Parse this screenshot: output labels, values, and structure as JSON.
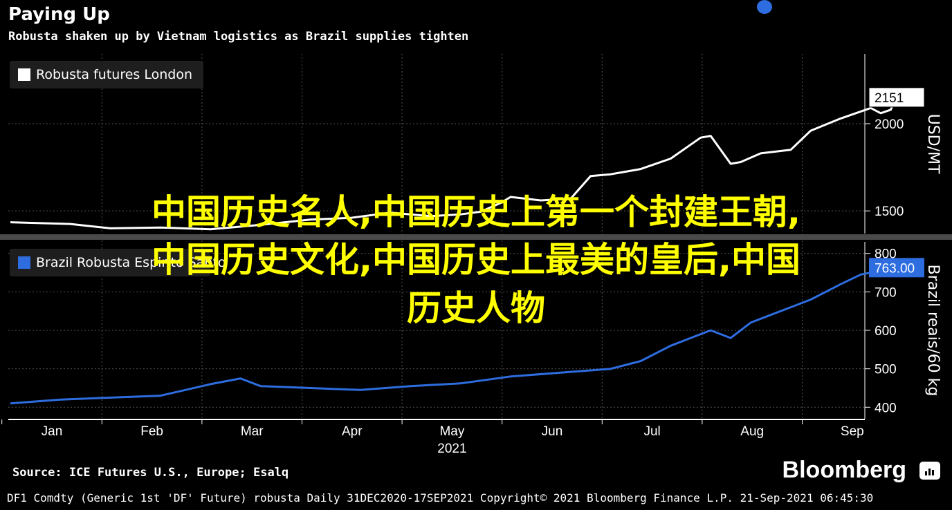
{
  "header": {
    "title": "Paying Up",
    "subtitle": "Robusta shaken up by Vietnam logistics as Brazil supplies tighten"
  },
  "colors": {
    "background": "#000000",
    "london_line": "#ffffff",
    "brazil_line": "#2e6de0",
    "overlay_text": "#ffff00",
    "grid": "#555555"
  },
  "overlay_text": {
    "line1": "中国历史名人,中国历史上第一个封建王朝,",
    "line2": "中国历史文化,中国历史上最美的皇后,中国",
    "line3": "历史人物"
  },
  "footer": {
    "source": "Source: ICE Futures U.S., Europe; Esalq",
    "brand": "Bloomberg",
    "brand_icon": "bloomberg-terminal-icon",
    "meta": "DF1 Comdty (Generic 1st 'DF' Future) robusta  Daily 31DEC2020-17SEP2021  Copyright© 2021 Bloomberg Finance L.P.  21-Sep-2021 06:45:30"
  },
  "chart_data": [
    {
      "type": "line",
      "panel": "top",
      "legend": "Robusta futures London",
      "legend_position": "top-left",
      "ylabel": "USD/MT",
      "yticks": [
        1500,
        2000
      ],
      "ylim": [
        1370,
        2400
      ],
      "last_value_label": "2151",
      "grid": true,
      "series": [
        {
          "name": "Robusta futures London",
          "x": [
            0,
            0.6,
            1.0,
            1.5,
            2.0,
            2.5,
            3.0,
            3.4,
            3.8,
            4.2,
            4.5,
            4.7,
            4.9,
            5.0,
            5.3,
            5.6,
            5.8,
            6.0,
            6.3,
            6.6,
            6.9,
            7.0,
            7.2,
            7.3,
            7.5,
            7.8,
            8.0,
            8.3,
            8.6,
            8.7,
            8.8,
            8.85
          ],
          "values": [
            1435,
            1425,
            1400,
            1405,
            1395,
            1420,
            1450,
            1460,
            1490,
            1470,
            1480,
            1495,
            1545,
            1580,
            1560,
            1570,
            1700,
            1710,
            1740,
            1800,
            1920,
            1930,
            1770,
            1780,
            1830,
            1850,
            1960,
            2030,
            2090,
            2060,
            2080,
            2151
          ]
        }
      ]
    },
    {
      "type": "line",
      "panel": "bottom",
      "legend": "Brazil Robusta Espirito Santo",
      "legend_position": "top-left",
      "ylabel": "Brazil reais/60 kg",
      "yticks": [
        400,
        500,
        600,
        700,
        800
      ],
      "ylim": [
        370,
        830
      ],
      "last_value_label": "763.00",
      "grid": true,
      "series": [
        {
          "name": "Brazil Robusta Espirito Santo",
          "x": [
            0,
            0.5,
            1.0,
            1.5,
            2.0,
            2.3,
            2.5,
            3.0,
            3.5,
            4.0,
            4.5,
            5.0,
            5.5,
            6.0,
            6.3,
            6.6,
            6.8,
            7.0,
            7.2,
            7.4,
            7.6,
            8.0,
            8.3,
            8.5,
            8.85
          ],
          "values": [
            410,
            420,
            425,
            430,
            460,
            475,
            455,
            450,
            445,
            455,
            462,
            480,
            490,
            500,
            520,
            560,
            580,
            600,
            580,
            620,
            640,
            680,
            720,
            745,
            763
          ]
        }
      ]
    }
  ],
  "x_axis": {
    "labels": [
      "Jan",
      "Feb",
      "Mar",
      "Apr",
      "May",
      "Jun",
      "Jul",
      "Aug",
      "Sep"
    ],
    "year_label": "2021"
  }
}
